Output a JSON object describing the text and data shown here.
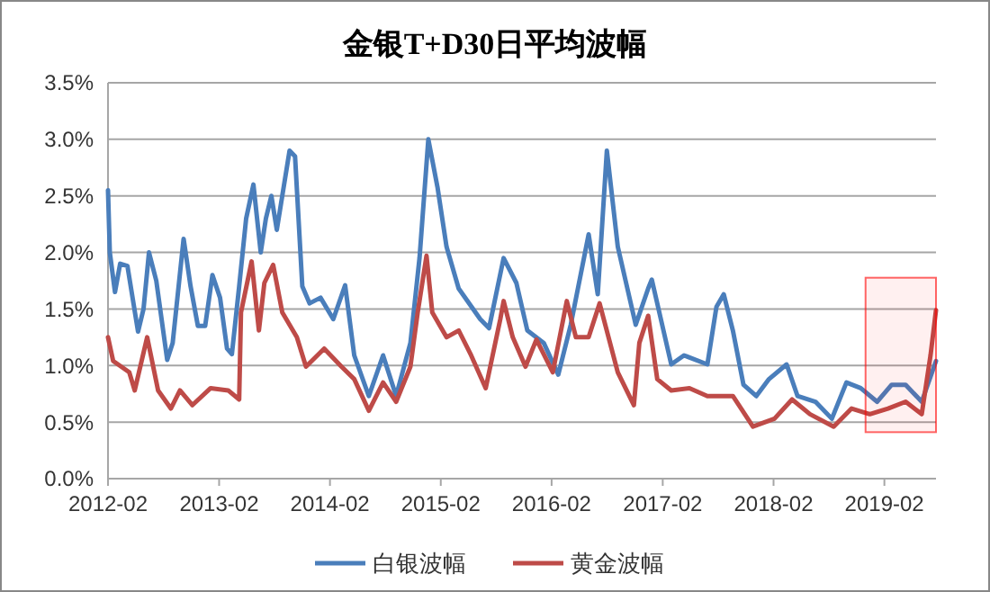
{
  "chart_data": {
    "type": "line",
    "title": "金银T+D30日平均波幅",
    "xlim": [
      "2012-02-01",
      "2019-07-21"
    ],
    "xticks": [
      "2012-02",
      "2013-02",
      "2014-02",
      "2015-02",
      "2016-02",
      "2017-02",
      "2018-02",
      "2019-02"
    ],
    "ylim": [
      0,
      3.5
    ],
    "yticks": [
      {
        "value": 0,
        "label": "0.0%"
      },
      {
        "value": 0.5,
        "label": "0.5%"
      },
      {
        "value": 1,
        "label": "1.0%"
      },
      {
        "value": 1.5,
        "label": "1.5%"
      },
      {
        "value": 2,
        "label": "2.0%"
      },
      {
        "value": 2.5,
        "label": "2.5%"
      },
      {
        "value": 3,
        "label": "3.0%"
      },
      {
        "value": 3.5,
        "label": "3.5%"
      }
    ],
    "grid": "y",
    "legend": "bottom",
    "line_style": "solid",
    "marker": "none",
    "bands": [
      {
        "axis": "x",
        "from": "2018-12-01",
        "to": "2019-07-21",
        "color": "#ff0000"
      }
    ],
    "series": [
      {
        "name": "白银波幅",
        "color": "#4a7ebb",
        "x": [
          "2012-02-01",
          "2012-02-07",
          "2012-02-24",
          "2012-03-12",
          "2012-04-05",
          "2012-05-10",
          "2012-05-28",
          "2012-06-15",
          "2012-07-09",
          "2012-08-14",
          "2012-09-01",
          "2012-10-07",
          "2012-10-30",
          "2012-11-23",
          "2012-12-17",
          "2013-01-10",
          "2013-02-04",
          "2013-02-27",
          "2013-03-15",
          "2013-04-08",
          "2013-05-01",
          "2013-05-25",
          "2013-06-18",
          "2013-07-05",
          "2013-07-23",
          "2013-08-10",
          "2013-08-28",
          "2013-09-21",
          "2013-10-09",
          "2013-11-02",
          "2013-11-26",
          "2014-01-01",
          "2014-02-12",
          "2014-03-23",
          "2014-04-22",
          "2014-06-09",
          "2014-07-26",
          "2014-09-07",
          "2014-10-24",
          "2014-11-23",
          "2014-12-22",
          "2015-01-21",
          "2015-02-20",
          "2015-04-01",
          "2015-06-11",
          "2015-07-10",
          "2015-08-27",
          "2015-10-08",
          "2015-11-13",
          "2016-01-06",
          "2016-02-23",
          "2016-04-04",
          "2016-06-02",
          "2016-07-02",
          "2016-08-01",
          "2016-09-06",
          "2016-11-04",
          "2016-12-15",
          "2016-12-27",
          "2017-03-01",
          "2017-04-12",
          "2017-06-28",
          "2017-07-28",
          "2017-08-21",
          "2017-09-20",
          "2017-10-25",
          "2017-12-06",
          "2018-01-17",
          "2018-03-16",
          "2018-04-21",
          "2018-06-19",
          "2018-08-12",
          "2018-09-29",
          "2018-11-15",
          "2019-01-08",
          "2019-02-25",
          "2019-04-12",
          "2019-06-04",
          "2019-07-21"
        ],
        "values": [
          2.55,
          2.0,
          1.65,
          1.9,
          1.88,
          1.3,
          1.5,
          2.0,
          1.75,
          1.05,
          1.2,
          2.12,
          1.7,
          1.35,
          1.35,
          1.8,
          1.6,
          1.15,
          1.1,
          1.7,
          2.3,
          2.6,
          2.0,
          2.3,
          2.5,
          2.2,
          2.5,
          2.9,
          2.85,
          1.7,
          1.55,
          1.6,
          1.41,
          1.71,
          1.09,
          0.73,
          1.09,
          0.73,
          1.2,
          1.95,
          3.0,
          2.58,
          2.05,
          1.68,
          1.41,
          1.33,
          1.95,
          1.73,
          1.31,
          1.2,
          0.92,
          1.36,
          2.16,
          1.63,
          2.9,
          2.05,
          1.36,
          1.68,
          1.76,
          1.01,
          1.09,
          1.01,
          1.52,
          1.63,
          1.31,
          0.83,
          0.73,
          0.88,
          1.01,
          0.73,
          0.68,
          0.53,
          0.85,
          0.8,
          0.68,
          0.83,
          0.83,
          0.68,
          1.04
        ]
      },
      {
        "name": "黄金波幅",
        "color": "#be4b48",
        "x": [
          "2012-02-01",
          "2012-02-18",
          "2012-04-11",
          "2012-04-29",
          "2012-06-09",
          "2012-07-15",
          "2012-08-26",
          "2012-09-25",
          "2012-11-05",
          "2013-01-04",
          "2013-03-03",
          "2013-04-08",
          "2013-04-14",
          "2013-05-19",
          "2013-06-12",
          "2013-06-30",
          "2013-07-29",
          "2013-08-28",
          "2013-10-15",
          "2013-11-14",
          "2014-01-13",
          "2014-03-11",
          "2014-04-22",
          "2014-06-09",
          "2014-07-26",
          "2014-09-07",
          "2014-10-24",
          "2014-11-17",
          "2014-12-16",
          "2015-01-04",
          "2015-02-20",
          "2015-04-01",
          "2015-05-12",
          "2015-06-29",
          "2015-08-16",
          "2015-08-27",
          "2015-09-26",
          "2015-11-07",
          "2015-12-13",
          "2016-02-05",
          "2016-03-22",
          "2016-04-21",
          "2016-06-02",
          "2016-07-08",
          "2016-09-06",
          "2016-10-29",
          "2016-11-16",
          "2016-12-15",
          "2017-01-14",
          "2017-03-01",
          "2017-04-30",
          "2017-06-28",
          "2017-09-20",
          "2017-11-25",
          "2018-02-04",
          "2018-04-03",
          "2018-06-01",
          "2018-08-18",
          "2018-10-16",
          "2018-12-15",
          "2019-02-13",
          "2019-04-12",
          "2019-06-04",
          "2019-07-03",
          "2019-07-21"
        ],
        "values": [
          1.25,
          1.04,
          0.94,
          0.78,
          1.25,
          0.78,
          0.62,
          0.78,
          0.65,
          0.8,
          0.78,
          0.7,
          1.47,
          1.92,
          1.31,
          1.73,
          1.89,
          1.47,
          1.25,
          0.99,
          1.15,
          0.99,
          0.88,
          0.6,
          0.85,
          0.68,
          0.99,
          1.47,
          1.97,
          1.47,
          1.25,
          1.31,
          1.09,
          0.8,
          1.41,
          1.57,
          1.25,
          0.99,
          1.23,
          0.94,
          1.57,
          1.25,
          1.25,
          1.55,
          0.94,
          0.65,
          1.2,
          1.44,
          0.88,
          0.78,
          0.8,
          0.73,
          0.73,
          0.46,
          0.53,
          0.7,
          0.57,
          0.46,
          0.62,
          0.57,
          0.62,
          0.68,
          0.57,
          1.09,
          1.49
        ]
      }
    ]
  }
}
